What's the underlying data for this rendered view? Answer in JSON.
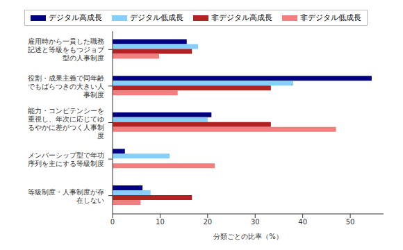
{
  "chart_data": {
    "type": "bar",
    "orientation": "horizontal",
    "legend": "top",
    "grid": false,
    "x_label": "分類ごとの比率（%）",
    "categories": [
      "雇用時から一貫した職務記述と等級をもつジョブ型の人事制度",
      "役割・成果主義で同年齢でもばらつきの大きい人事制度",
      "能力・コンピテンシーを重視し、年次に応じてゆるやかに差がつく人事制度",
      "メンバーシップ型で年功序列を主にする等級制度",
      "等級制度・人事制度が存在しない"
    ],
    "series": [
      {
        "name": "デジタル高成長",
        "color": "#000080",
        "values": [
          15.6,
          54.5,
          20.8,
          2.6,
          6.3
        ]
      },
      {
        "name": "デジタル低成長",
        "color": "#87cefa",
        "values": [
          18,
          38,
          20,
          12,
          8
        ]
      },
      {
        "name": "非デジタル高成長",
        "color": "#b22222",
        "values": [
          16.7,
          33.3,
          33.3,
          0,
          16.7
        ]
      },
      {
        "name": "非デジタル低成長",
        "color": "#f08080",
        "values": [
          9.8,
          13.7,
          47,
          21.5,
          5.9
        ]
      }
    ],
    "xlim": [
      0,
      57
    ],
    "xticks": [
      0,
      10,
      20,
      30,
      40,
      50
    ]
  }
}
